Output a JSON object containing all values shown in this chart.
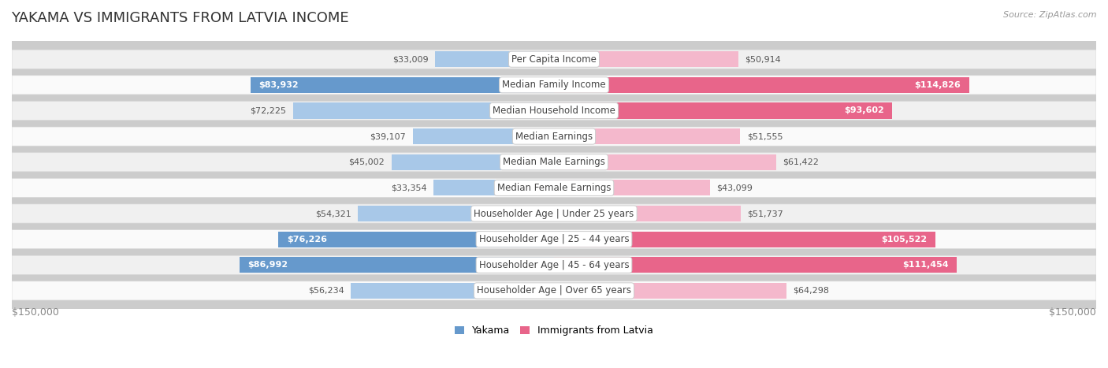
{
  "title": "YAKAMA VS IMMIGRANTS FROM LATVIA INCOME",
  "source": "Source: ZipAtlas.com",
  "categories": [
    "Per Capita Income",
    "Median Family Income",
    "Median Household Income",
    "Median Earnings",
    "Median Male Earnings",
    "Median Female Earnings",
    "Householder Age | Under 25 years",
    "Householder Age | 25 - 44 years",
    "Householder Age | 45 - 64 years",
    "Householder Age | Over 65 years"
  ],
  "yakama_values": [
    33009,
    83932,
    72225,
    39107,
    45002,
    33354,
    54321,
    76226,
    86992,
    56234
  ],
  "latvia_values": [
    50914,
    114826,
    93602,
    51555,
    61422,
    43099,
    51737,
    105522,
    111454,
    64298
  ],
  "max_value": 150000,
  "yakama_color_light": "#a8c8e8",
  "yakama_color_dark": "#6699cc",
  "latvia_color_light": "#f4b8cc",
  "latvia_color_dark": "#e8658a",
  "row_bg_odd": "#f0f0f0",
  "row_bg_even": "#fafafa",
  "row_border": "#d8d8d8",
  "bg_color": "#ffffff",
  "title_color": "#333333",
  "value_color_outside": "#555555",
  "value_color_inside": "#ffffff",
  "cat_label_color": "#444444",
  "axis_label_color": "#888888",
  "title_fontsize": 13,
  "value_fontsize": 8,
  "cat_fontsize": 8.5,
  "legend_fontsize": 9,
  "axis_fontsize": 9,
  "source_fontsize": 8,
  "yakama_label": "Yakama",
  "latvia_label": "Immigrants from Latvia",
  "inside_threshold": 0.5
}
